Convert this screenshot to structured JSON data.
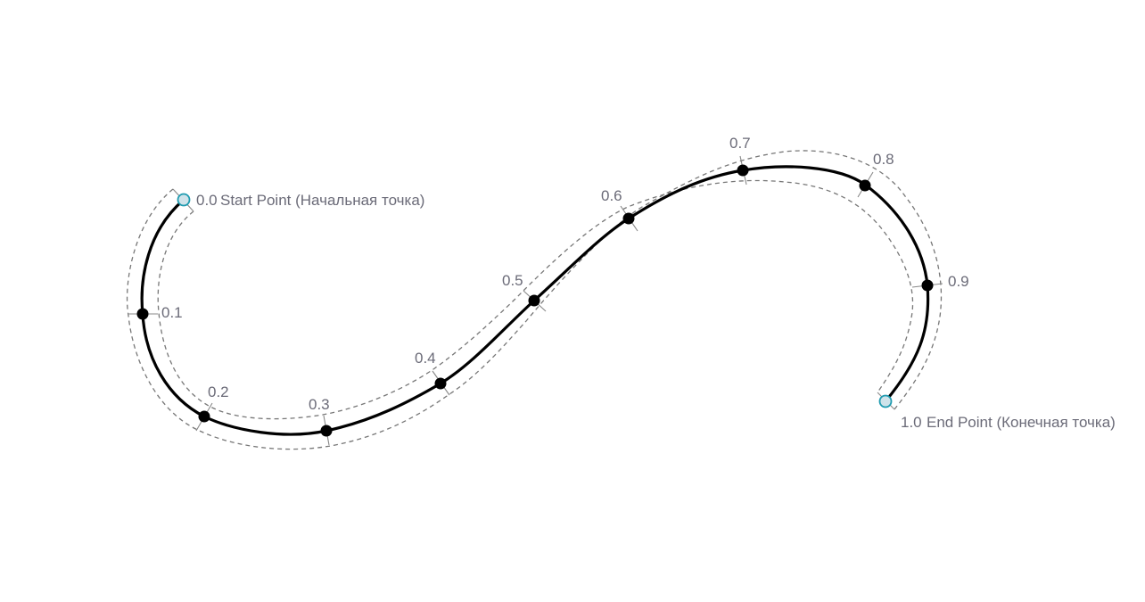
{
  "diagram": {
    "start": {
      "value": "0.0",
      "label": "Start Point (Начальная точка)"
    },
    "end": {
      "value": "1.0",
      "label": "End Point (Конечная точка)"
    },
    "params": [
      "0.1",
      "0.2",
      "0.3",
      "0.4",
      "0.5",
      "0.6",
      "0.7",
      "0.8",
      "0.9"
    ],
    "colors": {
      "curve": "#000000",
      "points": "#000000",
      "endpoint_fill": "#cfe3ea",
      "endpoint_stroke": "#1f9bb0",
      "guide": "#777777",
      "label_text": "#6b6b78"
    }
  }
}
